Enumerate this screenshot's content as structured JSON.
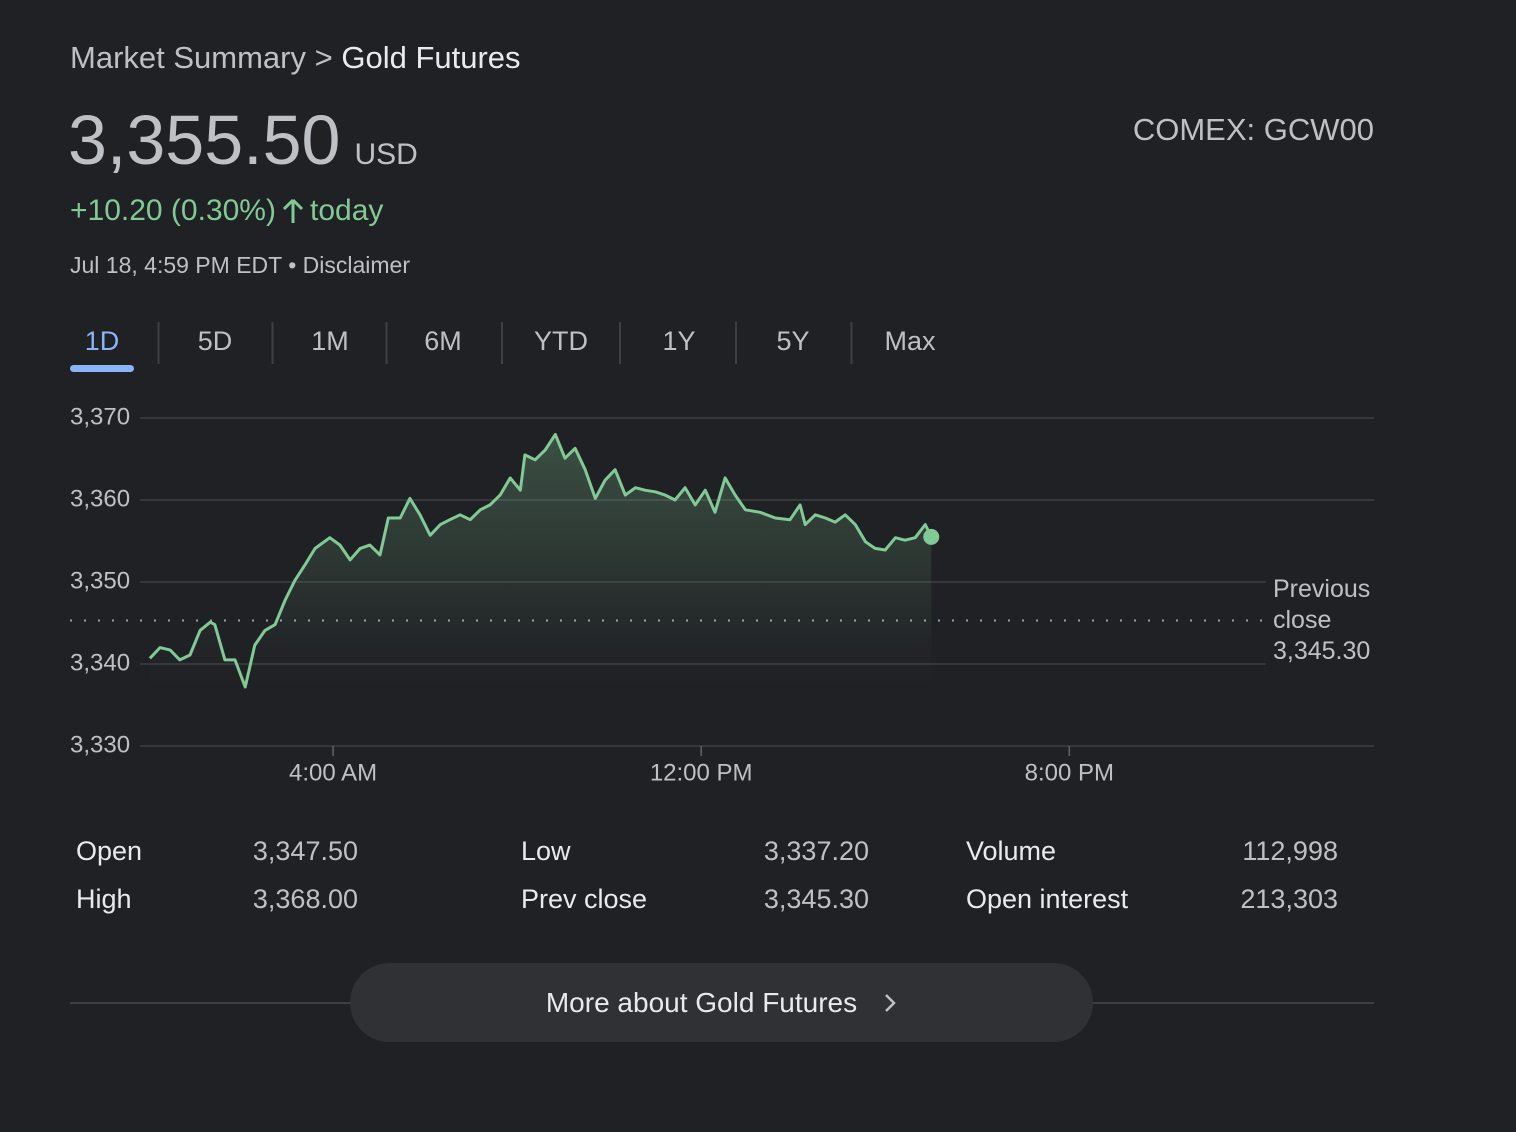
{
  "header": {
    "breadcrumb": "Market Summary",
    "separator": ">",
    "title": "Gold Futures",
    "price": "3,355.50",
    "currency": "USD",
    "exchange": "COMEX: GCW00",
    "change": "+10.20 (0.30%)",
    "change_period": "today",
    "timestamp": "Jul 18, 4:59 PM EDT",
    "timestamp_separator": "•",
    "disclaimer": "Disclaimer"
  },
  "tabs": [
    "1D",
    "5D",
    "1M",
    "6M",
    "YTD",
    "1Y",
    "5Y",
    "Max"
  ],
  "chart_data": {
    "type": "line",
    "x": [
      0.02,
      0.24,
      0.46,
      0.67,
      0.89,
      1.11,
      1.33,
      1.43,
      1.65,
      1.87,
      2.09,
      2.3,
      2.52,
      2.74,
      2.96,
      3.17,
      3.39,
      3.61,
      3.93,
      4.15,
      4.37,
      4.59,
      4.8,
      5.02,
      5.2,
      5.46,
      5.67,
      5.89,
      6.11,
      6.33,
      6.54,
      6.76,
      6.98,
      7.2,
      7.41,
      7.63,
      7.85,
      8.07,
      8.17,
      8.39,
      8.61,
      8.83,
      9.04,
      9.26,
      9.48,
      9.7,
      9.91,
      10.13,
      10.35,
      10.57,
      10.78,
      11.0,
      11.22,
      11.43,
      11.65,
      11.87,
      12.09,
      12.3,
      12.52,
      12.74,
      12.96,
      13.28,
      13.61,
      13.93,
      14.15,
      14.26,
      14.48,
      14.7,
      14.91,
      15.13,
      15.35,
      15.57,
      15.78,
      16.0,
      16.22,
      16.43,
      16.65,
      16.87,
      17.0
    ],
    "series": [
      {
        "color": "#81c995",
        "values": [
          3340.7,
          3342.0,
          3341.7,
          3340.5,
          3341.1,
          3344.1,
          3345.1,
          3344.8,
          3340.5,
          3340.5,
          3337.2,
          3342.3,
          3344.1,
          3344.8,
          3347.8,
          3350.2,
          3352.1,
          3354.1,
          3355.4,
          3354.5,
          3352.7,
          3354.1,
          3354.5,
          3353.3,
          3357.8,
          3357.8,
          3360.2,
          3358.2,
          3355.7,
          3357.0,
          3357.6,
          3358.2,
          3357.6,
          3358.8,
          3359.4,
          3360.6,
          3362.7,
          3361.2,
          3365.5,
          3364.9,
          3366.1,
          3368.0,
          3365.1,
          3366.3,
          3363.7,
          3360.2,
          3362.4,
          3363.7,
          3360.6,
          3361.5,
          3361.2,
          3361.0,
          3360.6,
          3360.0,
          3361.5,
          3359.4,
          3361.2,
          3358.5,
          3362.7,
          3360.6,
          3358.8,
          3358.5,
          3357.8,
          3357.6,
          3359.4,
          3357.0,
          3358.2,
          3357.8,
          3357.3,
          3358.2,
          3357.0,
          3354.9,
          3354.1,
          3353.9,
          3355.4,
          3355.1,
          3355.4,
          3357.0,
          3355.5
        ]
      }
    ],
    "xlim": [
      0,
      26.6
    ],
    "xticks": [
      {
        "value": 4,
        "label": "4:00 AM"
      },
      {
        "value": 12,
        "label": "12:00 PM"
      },
      {
        "value": 20,
        "label": "8:00 PM"
      }
    ],
    "ylim": [
      3330,
      3370
    ],
    "yticks": [
      {
        "value": 3330,
        "label": "3,330"
      },
      {
        "value": 3340,
        "label": "3,340"
      },
      {
        "value": 3350,
        "label": "3,350"
      },
      {
        "value": 3360,
        "label": "3,360"
      },
      {
        "value": 3370,
        "label": "3,370"
      }
    ],
    "grid": true,
    "reference_line": {
      "label": "Previous close",
      "value": 3345.3,
      "value_label": "3,345.30"
    }
  },
  "stats": {
    "rows": [
      [
        [
          "Open",
          "3,347.50"
        ],
        [
          "Low",
          "3,337.20"
        ],
        [
          "Volume",
          "112,998"
        ]
      ],
      [
        [
          "High",
          "3,368.00"
        ],
        [
          "Prev close",
          "3,345.30"
        ],
        [
          "Open interest",
          "213,303"
        ]
      ]
    ]
  },
  "more_button": "More about Gold Futures"
}
